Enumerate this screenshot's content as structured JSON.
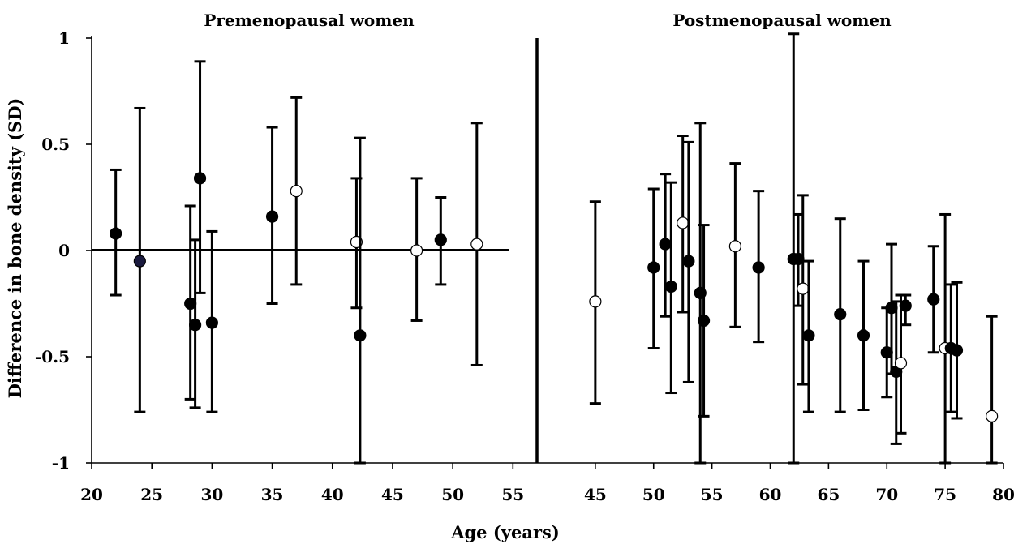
{
  "chart_data": {
    "type": "scatter",
    "ylabel": "Difference in bone density (SD)",
    "xlabel": "Age (years)",
    "ylim": [
      -1,
      1
    ],
    "yticks": [
      {
        "value": 1,
        "label": "1"
      },
      {
        "value": 0.5,
        "label": "0.5"
      },
      {
        "value": 0,
        "label": "0"
      },
      {
        "value": -0.5,
        "label": "-0.5"
      },
      {
        "value": -1,
        "label": "-1"
      }
    ],
    "grid": false,
    "reference_line": 0,
    "panels": [
      {
        "title": "Premenopausal women",
        "xlim": [
          20,
          57
        ],
        "xticks": [
          20,
          25,
          30,
          35,
          40,
          45,
          50,
          55
        ],
        "points": [
          {
            "x": 22,
            "y": 0.08,
            "lo": -0.21,
            "hi": 0.38,
            "filled": true
          },
          {
            "x": 24,
            "y": -0.05,
            "lo": -0.76,
            "hi": 0.67,
            "filled": true,
            "color": "#1a1a3e"
          },
          {
            "x": 28.2,
            "y": -0.25,
            "lo": -0.7,
            "hi": 0.21,
            "filled": true
          },
          {
            "x": 28.6,
            "y": -0.35,
            "lo": -0.74,
            "hi": 0.05,
            "filled": true
          },
          {
            "x": 29,
            "y": 0.34,
            "lo": -0.2,
            "hi": 0.89,
            "filled": true
          },
          {
            "x": 30,
            "y": -0.34,
            "lo": -0.76,
            "hi": 0.09,
            "filled": true
          },
          {
            "x": 35,
            "y": 0.16,
            "lo": -0.25,
            "hi": 0.58,
            "filled": true
          },
          {
            "x": 37,
            "y": 0.28,
            "lo": -0.16,
            "hi": 0.72,
            "filled": false
          },
          {
            "x": 42,
            "y": 0.04,
            "lo": -0.27,
            "hi": 0.34,
            "filled": false
          },
          {
            "x": 42.3,
            "y": -0.4,
            "lo": -1.0,
            "hi": 0.53,
            "filled": true
          },
          {
            "x": 47,
            "y": 0.0,
            "lo": -0.33,
            "hi": 0.34,
            "filled": false
          },
          {
            "x": 49,
            "y": 0.05,
            "lo": -0.16,
            "hi": 0.25,
            "filled": true
          },
          {
            "x": 52,
            "y": 0.03,
            "lo": -0.54,
            "hi": 0.6,
            "filled": false
          }
        ]
      },
      {
        "title": "Postmenopausal women",
        "xlim": [
          40,
          80
        ],
        "xticks": [
          45,
          50,
          55,
          60,
          65,
          70,
          75,
          80
        ],
        "points": [
          {
            "x": 45,
            "y": -0.24,
            "lo": -0.72,
            "hi": 0.23,
            "filled": false
          },
          {
            "x": 50,
            "y": -0.08,
            "lo": -0.46,
            "hi": 0.29,
            "filled": true
          },
          {
            "x": 51,
            "y": 0.03,
            "lo": -0.31,
            "hi": 0.36,
            "filled": true
          },
          {
            "x": 51.5,
            "y": -0.17,
            "lo": -0.67,
            "hi": 0.32,
            "filled": true
          },
          {
            "x": 52.5,
            "y": 0.13,
            "lo": -0.29,
            "hi": 0.54,
            "filled": false
          },
          {
            "x": 53,
            "y": -0.05,
            "lo": -0.62,
            "hi": 0.51,
            "filled": true
          },
          {
            "x": 54,
            "y": -0.2,
            "lo": -1.0,
            "hi": 0.6,
            "filled": true
          },
          {
            "x": 54.3,
            "y": -0.33,
            "lo": -0.78,
            "hi": 0.12,
            "filled": true
          },
          {
            "x": 57,
            "y": 0.02,
            "lo": -0.36,
            "hi": 0.41,
            "filled": false
          },
          {
            "x": 59,
            "y": -0.08,
            "lo": -0.43,
            "hi": 0.28,
            "filled": true
          },
          {
            "x": 62,
            "y": -0.04,
            "lo": -1.0,
            "hi": 1.02,
            "filled": true
          },
          {
            "x": 62.4,
            "y": -0.04,
            "lo": -0.26,
            "hi": 0.17,
            "filled": true
          },
          {
            "x": 62.8,
            "y": -0.18,
            "lo": -0.63,
            "hi": 0.26,
            "filled": false
          },
          {
            "x": 63.3,
            "y": -0.4,
            "lo": -0.76,
            "hi": -0.05,
            "filled": true
          },
          {
            "x": 66,
            "y": -0.3,
            "lo": -0.76,
            "hi": 0.15,
            "filled": true
          },
          {
            "x": 68,
            "y": -0.4,
            "lo": -0.75,
            "hi": -0.05,
            "filled": true
          },
          {
            "x": 70,
            "y": -0.48,
            "lo": -0.69,
            "hi": -0.27,
            "filled": true
          },
          {
            "x": 70.4,
            "y": -0.27,
            "lo": -0.58,
            "hi": 0.03,
            "filled": true
          },
          {
            "x": 70.8,
            "y": -0.57,
            "lo": -0.91,
            "hi": -0.24,
            "filled": true
          },
          {
            "x": 71.2,
            "y": -0.53,
            "lo": -0.86,
            "hi": -0.21,
            "filled": false
          },
          {
            "x": 71.6,
            "y": -0.26,
            "lo": -0.35,
            "hi": -0.21,
            "filled": true
          },
          {
            "x": 74,
            "y": -0.23,
            "lo": -0.48,
            "hi": 0.02,
            "filled": true
          },
          {
            "x": 75,
            "y": -0.46,
            "lo": -1.0,
            "hi": 0.17,
            "filled": false
          },
          {
            "x": 75.5,
            "y": -0.46,
            "lo": -0.76,
            "hi": -0.16,
            "filled": true
          },
          {
            "x": 76,
            "y": -0.47,
            "lo": -0.79,
            "hi": -0.15,
            "filled": true
          },
          {
            "x": 79,
            "y": -0.78,
            "lo": -1.0,
            "hi": -0.31,
            "filled": false
          }
        ]
      }
    ]
  }
}
